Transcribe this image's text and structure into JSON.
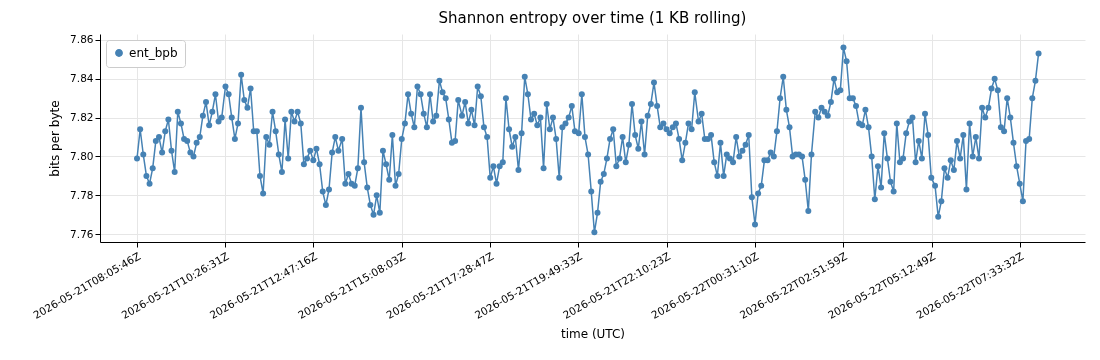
{
  "chart_data": {
    "type": "line",
    "title": "Shannon entropy over time (1 KB rolling)",
    "xlabel": "time (UTC)",
    "ylabel": "bits per byte",
    "x": [
      "2026-05-21T08:06",
      "2026-05-21T08:11",
      "2026-05-21T08:16",
      "2026-05-21T08:21",
      "2026-05-21T08:26",
      "2026-05-21T08:31",
      "2026-05-21T08:36",
      "2026-05-21T08:41",
      "2026-05-21T08:46",
      "2026-05-21T08:51",
      "2026-05-21T08:56",
      "2026-05-21T09:01",
      "2026-05-21T09:06",
      "2026-05-21T09:11",
      "2026-05-21T09:16",
      "2026-05-21T09:21",
      "2026-05-21T09:26",
      "2026-05-21T09:31",
      "2026-05-21T09:36",
      "2026-05-21T09:41",
      "2026-05-21T09:46",
      "2026-05-21T09:51",
      "2026-05-21T09:56",
      "2026-05-21T10:01",
      "2026-05-21T10:06",
      "2026-05-21T10:11",
      "2026-05-21T10:16",
      "2026-05-21T10:21",
      "2026-05-21T10:27",
      "2026-05-21T10:32",
      "2026-05-21T10:37",
      "2026-05-21T10:42",
      "2026-05-21T10:47",
      "2026-05-21T10:52",
      "2026-05-21T10:57",
      "2026-05-21T11:02",
      "2026-05-21T11:07",
      "2026-05-21T11:12",
      "2026-05-21T11:17",
      "2026-05-21T11:22",
      "2026-05-21T11:27",
      "2026-05-21T11:32",
      "2026-05-21T11:37",
      "2026-05-21T11:42",
      "2026-05-21T11:47",
      "2026-05-21T11:52",
      "2026-05-21T11:57",
      "2026-05-21T12:02",
      "2026-05-21T12:07",
      "2026-05-21T12:12",
      "2026-05-21T12:17",
      "2026-05-21T12:22",
      "2026-05-21T12:27",
      "2026-05-21T12:32",
      "2026-05-21T12:37",
      "2026-05-21T12:42",
      "2026-05-21T12:47",
      "2026-05-21T12:52",
      "2026-05-21T12:57",
      "2026-05-21T13:02",
      "2026-05-21T13:07",
      "2026-05-21T13:12",
      "2026-05-21T13:17",
      "2026-05-21T13:22",
      "2026-05-21T13:27",
      "2026-05-21T13:33",
      "2026-05-21T13:38",
      "2026-05-21T13:43",
      "2026-05-21T13:48",
      "2026-05-21T13:53",
      "2026-05-21T13:58",
      "2026-05-21T14:03",
      "2026-05-21T14:08",
      "2026-05-21T14:13",
      "2026-05-21T14:18",
      "2026-05-21T14:23",
      "2026-05-21T14:28",
      "2026-05-21T14:33",
      "2026-05-21T14:38",
      "2026-05-21T14:43",
      "2026-05-21T14:48",
      "2026-05-21T14:53",
      "2026-05-21T14:58",
      "2026-05-21T15:03",
      "2026-05-21T15:08",
      "2026-05-21T15:13",
      "2026-05-21T15:18",
      "2026-05-21T15:23",
      "2026-05-21T15:28",
      "2026-05-21T15:33",
      "2026-05-21T15:38",
      "2026-05-21T15:43",
      "2026-05-21T15:48",
      "2026-05-21T15:53",
      "2026-05-21T15:58",
      "2026-05-21T16:03",
      "2026-05-21T16:08",
      "2026-05-21T16:13",
      "2026-05-21T16:18",
      "2026-05-21T16:23",
      "2026-05-21T16:28",
      "2026-05-21T16:33",
      "2026-05-21T16:38",
      "2026-05-21T16:44",
      "2026-05-21T16:49",
      "2026-05-21T16:54",
      "2026-05-21T16:59",
      "2026-05-21T17:04",
      "2026-05-21T17:09",
      "2026-05-21T17:14",
      "2026-05-21T17:19",
      "2026-05-21T17:24",
      "2026-05-21T17:29",
      "2026-05-21T17:34",
      "2026-05-21T17:39",
      "2026-05-21T17:44",
      "2026-05-21T17:49",
      "2026-05-21T17:54",
      "2026-05-21T17:59",
      "2026-05-21T18:04",
      "2026-05-21T18:09",
      "2026-05-21T18:14",
      "2026-05-21T18:19",
      "2026-05-21T18:24",
      "2026-05-21T18:29",
      "2026-05-21T18:34",
      "2026-05-21T18:39",
      "2026-05-21T18:44",
      "2026-05-21T18:49",
      "2026-05-21T18:54",
      "2026-05-21T18:59",
      "2026-05-21T19:04",
      "2026-05-21T19:09",
      "2026-05-21T19:14",
      "2026-05-21T19:19",
      "2026-05-21T19:24",
      "2026-05-21T19:29",
      "2026-05-21T19:34",
      "2026-05-21T19:39",
      "2026-05-21T19:44",
      "2026-05-21T19:50",
      "2026-05-21T19:55",
      "2026-05-21T20:00",
      "2026-05-21T20:05",
      "2026-05-21T20:10",
      "2026-05-21T20:15",
      "2026-05-21T20:20",
      "2026-05-21T20:25",
      "2026-05-21T20:30",
      "2026-05-21T20:35",
      "2026-05-21T20:40",
      "2026-05-21T20:45",
      "2026-05-21T20:50",
      "2026-05-21T20:55",
      "2026-05-21T21:00",
      "2026-05-21T21:05",
      "2026-05-21T21:10",
      "2026-05-21T21:15",
      "2026-05-21T21:20",
      "2026-05-21T21:25",
      "2026-05-21T21:30",
      "2026-05-21T21:35",
      "2026-05-21T21:40",
      "2026-05-21T21:45",
      "2026-05-21T21:50",
      "2026-05-21T21:55",
      "2026-05-21T22:00",
      "2026-05-21T22:05",
      "2026-05-21T22:10",
      "2026-05-21T22:15",
      "2026-05-21T22:20",
      "2026-05-21T22:25",
      "2026-05-21T22:30",
      "2026-05-21T22:35",
      "2026-05-21T22:40",
      "2026-05-21T22:45",
      "2026-05-21T22:50",
      "2026-05-21T22:55",
      "2026-05-21T23:01",
      "2026-05-21T23:06",
      "2026-05-21T23:11",
      "2026-05-21T23:16",
      "2026-05-21T23:21",
      "2026-05-21T23:26",
      "2026-05-21T23:31",
      "2026-05-21T23:36",
      "2026-05-21T23:41",
      "2026-05-21T23:46",
      "2026-05-21T23:51",
      "2026-05-21T23:56",
      "2026-05-22T00:01",
      "2026-05-22T00:06",
      "2026-05-22T00:11",
      "2026-05-22T00:16",
      "2026-05-22T00:21",
      "2026-05-22T00:26",
      "2026-05-22T00:31",
      "2026-05-22T00:36",
      "2026-05-22T00:41",
      "2026-05-22T00:46",
      "2026-05-22T00:51",
      "2026-05-22T00:56",
      "2026-05-22T01:01",
      "2026-05-22T01:06",
      "2026-05-22T01:11",
      "2026-05-22T01:16",
      "2026-05-22T01:21",
      "2026-05-22T01:26",
      "2026-05-22T01:31",
      "2026-05-22T01:36",
      "2026-05-22T01:41",
      "2026-05-22T01:46",
      "2026-05-22T01:51",
      "2026-05-22T01:56",
      "2026-05-22T02:01",
      "2026-05-22T02:07",
      "2026-05-22T02:12",
      "2026-05-22T02:17",
      "2026-05-22T02:22",
      "2026-05-22T02:27",
      "2026-05-22T02:32",
      "2026-05-22T02:37",
      "2026-05-22T02:42",
      "2026-05-22T02:47",
      "2026-05-22T02:52",
      "2026-05-22T02:57",
      "2026-05-22T03:02",
      "2026-05-22T03:07",
      "2026-05-22T03:12",
      "2026-05-22T03:17",
      "2026-05-22T03:22",
      "2026-05-22T03:27",
      "2026-05-22T03:32",
      "2026-05-22T03:37",
      "2026-05-22T03:42",
      "2026-05-22T03:47",
      "2026-05-22T03:52",
      "2026-05-22T03:57",
      "2026-05-22T04:02",
      "2026-05-22T04:07",
      "2026-05-22T04:12",
      "2026-05-22T04:17",
      "2026-05-22T04:22",
      "2026-05-22T04:27",
      "2026-05-22T04:32",
      "2026-05-22T04:37",
      "2026-05-22T04:42",
      "2026-05-22T04:47",
      "2026-05-22T04:52",
      "2026-05-22T04:57",
      "2026-05-22T05:02",
      "2026-05-22T05:07",
      "2026-05-22T05:12",
      "2026-05-22T05:18",
      "2026-05-22T05:23",
      "2026-05-22T05:28",
      "2026-05-22T05:33",
      "2026-05-22T05:38",
      "2026-05-22T05:43",
      "2026-05-22T05:48",
      "2026-05-22T05:53",
      "2026-05-22T05:58",
      "2026-05-22T06:03",
      "2026-05-22T06:08",
      "2026-05-22T06:13",
      "2026-05-22T06:18",
      "2026-05-22T06:23",
      "2026-05-22T06:28",
      "2026-05-22T06:33",
      "2026-05-22T06:38",
      "2026-05-22T06:43",
      "2026-05-22T06:48",
      "2026-05-22T06:53",
      "2026-05-22T06:58",
      "2026-05-22T07:03",
      "2026-05-22T07:08",
      "2026-05-22T07:13",
      "2026-05-22T07:18",
      "2026-05-22T07:23",
      "2026-05-22T07:28",
      "2026-05-22T07:33",
      "2026-05-22T07:38",
      "2026-05-22T07:43",
      "2026-05-22T07:48",
      "2026-05-22T07:53",
      "2026-05-22T07:58",
      "2026-05-22T08:03"
    ],
    "series": [
      {
        "name": "ent_bpb",
        "color": "#4682b4",
        "values": [
          7.799,
          7.814,
          7.801,
          7.79,
          7.786,
          7.794,
          7.808,
          7.81,
          7.802,
          7.813,
          7.819,
          7.803,
          7.792,
          7.823,
          7.817,
          7.809,
          7.808,
          7.802,
          7.8,
          7.807,
          7.81,
          7.821,
          7.828,
          7.816,
          7.823,
          7.832,
          7.818,
          7.82,
          7.836,
          7.832,
          7.82,
          7.809,
          7.817,
          7.842,
          7.829,
          7.825,
          7.835,
          7.813,
          7.813,
          7.79,
          7.781,
          7.81,
          7.806,
          7.823,
          7.813,
          7.801,
          7.792,
          7.819,
          7.799,
          7.823,
          7.818,
          7.823,
          7.817,
          7.796,
          7.799,
          7.803,
          7.798,
          7.804,
          7.796,
          7.782,
          7.775,
          7.783,
          7.802,
          7.81,
          7.803,
          7.809,
          7.786,
          7.791,
          7.786,
          7.785,
          7.794,
          7.825,
          7.797,
          7.784,
          7.775,
          7.77,
          7.78,
          7.771,
          7.803,
          7.796,
          7.788,
          7.811,
          7.785,
          7.791,
          7.809,
          7.817,
          7.832,
          7.822,
          7.815,
          7.836,
          7.832,
          7.822,
          7.815,
          7.832,
          7.818,
          7.821,
          7.839,
          7.833,
          7.83,
          7.819,
          7.807,
          7.808,
          7.829,
          7.821,
          7.828,
          7.817,
          7.824,
          7.816,
          7.836,
          7.831,
          7.815,
          7.81,
          7.789,
          7.795,
          7.786,
          7.795,
          7.797,
          7.83,
          7.814,
          7.805,
          7.81,
          7.793,
          7.812,
          7.841,
          7.832,
          7.819,
          7.822,
          7.816,
          7.82,
          7.794,
          7.827,
          7.814,
          7.82,
          7.809,
          7.789,
          7.815,
          7.817,
          7.82,
          7.826,
          7.813,
          7.812,
          7.832,
          7.81,
          7.801,
          7.782,
          7.761,
          7.771,
          7.787,
          7.791,
          7.799,
          7.809,
          7.814,
          7.795,
          7.799,
          7.81,
          7.797,
          7.806,
          7.827,
          7.811,
          7.804,
          7.818,
          7.801,
          7.821,
          7.827,
          7.838,
          7.826,
          7.815,
          7.817,
          7.814,
          7.812,
          7.815,
          7.817,
          7.809,
          7.798,
          7.807,
          7.817,
          7.814,
          7.833,
          7.818,
          7.822,
          7.809,
          7.809,
          7.811,
          7.797,
          7.79,
          7.807,
          7.79,
          7.801,
          7.799,
          7.797,
          7.81,
          7.8,
          7.803,
          7.806,
          7.811,
          7.779,
          7.765,
          7.781,
          7.785,
          7.798,
          7.798,
          7.802,
          7.8,
          7.813,
          7.83,
          7.841,
          7.824,
          7.815,
          7.8,
          7.801,
          7.801,
          7.8,
          7.788,
          7.772,
          7.801,
          7.823,
          7.82,
          7.825,
          7.823,
          7.821,
          7.828,
          7.84,
          7.833,
          7.834,
          7.856,
          7.849,
          7.83,
          7.83,
          7.826,
          7.817,
          7.816,
          7.824,
          7.815,
          7.8,
          7.778,
          7.795,
          7.784,
          7.812,
          7.799,
          7.787,
          7.782,
          7.817,
          7.797,
          7.799,
          7.812,
          7.818,
          7.82,
          7.797,
          7.808,
          7.799,
          7.822,
          7.811,
          7.789,
          7.785,
          7.769,
          7.777,
          7.794,
          7.789,
          7.798,
          7.793,
          7.808,
          7.799,
          7.811,
          7.783,
          7.817,
          7.8,
          7.81,
          7.799,
          7.825,
          7.82,
          7.825,
          7.835,
          7.84,
          7.834,
          7.815,
          7.813,
          7.83,
          7.82,
          7.807,
          7.795,
          7.786,
          7.777,
          7.808,
          7.809,
          7.83,
          7.839,
          7.853
        ]
      }
    ],
    "xlim": [
      "2026-05-21T07:07",
      "2026-05-22T09:17"
    ],
    "xticks": [
      {
        "value": "2026-05-21T08:05:46",
        "label": "2026-05-21T08:05:46Z"
      },
      {
        "value": "2026-05-21T10:26:31",
        "label": "2026-05-21T10:26:31Z"
      },
      {
        "value": "2026-05-21T12:47:16",
        "label": "2026-05-21T12:47:16Z"
      },
      {
        "value": "2026-05-21T15:08:03",
        "label": "2026-05-21T15:08:03Z"
      },
      {
        "value": "2026-05-21T17:28:47",
        "label": "2026-05-21T17:28:47Z"
      },
      {
        "value": "2026-05-21T19:49:33",
        "label": "2026-05-21T19:49:33Z"
      },
      {
        "value": "2026-05-21T22:10:23",
        "label": "2026-05-21T22:10:23Z"
      },
      {
        "value": "2026-05-22T00:31:10",
        "label": "2026-05-22T00:31:10Z"
      },
      {
        "value": "2026-05-22T02:51:59",
        "label": "2026-05-22T02:51:59Z"
      },
      {
        "value": "2026-05-22T05:12:49",
        "label": "2026-05-22T05:12:49Z"
      },
      {
        "value": "2026-05-22T07:33:32",
        "label": "2026-05-22T07:33:32Z"
      }
    ],
    "ylim": [
      7.756,
      7.863
    ],
    "yticks": [
      7.76,
      7.78,
      {
        "value": 7.8,
        "label": "7.80"
      },
      7.82,
      7.84,
      7.86
    ],
    "grid": true,
    "legend": "top left",
    "marker": "circle",
    "line_style": "solid"
  }
}
